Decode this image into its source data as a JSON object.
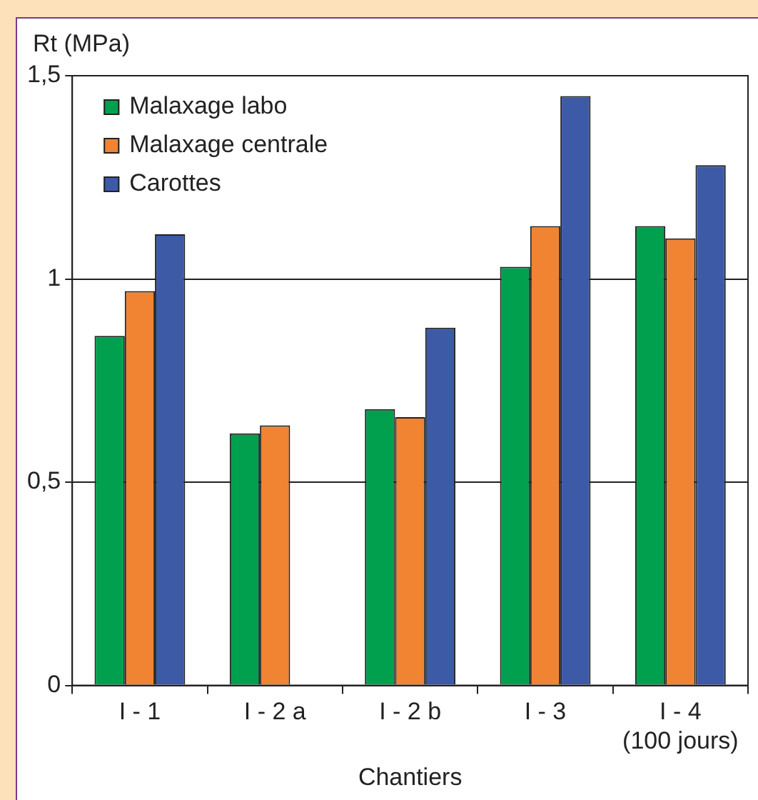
{
  "chart_data": {
    "type": "bar",
    "ylabel": "Rt (MPa)",
    "xlabel": "Chantiers",
    "categories": [
      "I - 1",
      "I - 2 a",
      "I - 2 b",
      "I - 3",
      "I - 4\n(100 jours)"
    ],
    "series": [
      {
        "name": "Malaxage labo",
        "color": "#00a04e",
        "values": [
          0.86,
          0.62,
          0.68,
          1.03,
          1.13
        ]
      },
      {
        "name": "Malaxage centrale",
        "color": "#f08433",
        "values": [
          0.97,
          0.64,
          0.66,
          1.13,
          1.1
        ]
      },
      {
        "name": "Carottes",
        "color": "#3c5aa6",
        "values": [
          1.11,
          null,
          0.88,
          1.45,
          1.28
        ]
      }
    ],
    "ylim": [
      0,
      1.5
    ],
    "yticks": [
      0,
      {
        "value": 0.5,
        "label": "0,5"
      },
      1,
      {
        "value": 1.5,
        "label": "1,5"
      }
    ],
    "grid": "y",
    "legend": "top left"
  }
}
